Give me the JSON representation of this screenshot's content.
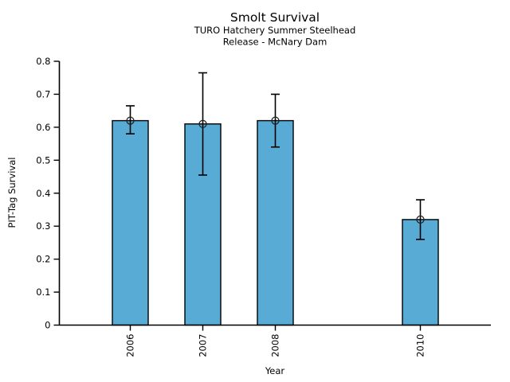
{
  "chart_data": {
    "type": "bar",
    "title": "Smolt Survival",
    "subtitle_line1": "TURO Hatchery Summer Steelhead",
    "subtitle_line2": "Release - McNary Dam",
    "xlabel": "Year",
    "ylabel": "PIT-Tag Survival",
    "categories": [
      "2006",
      "2007",
      "2008",
      "2010"
    ],
    "x_values": [
      2006,
      2007,
      2008,
      2010
    ],
    "values": [
      0.62,
      0.61,
      0.62,
      0.32
    ],
    "error_low": [
      0.58,
      0.455,
      0.54,
      0.26
    ],
    "error_high": [
      0.665,
      0.765,
      0.7,
      0.38
    ],
    "marker": "open-circle",
    "y_tick_labels": [
      "0",
      "0.1",
      "0.2",
      "0.3",
      "0.4",
      "0.5",
      "0.6",
      "0.7",
      "0.8"
    ],
    "y_ticks": [
      0,
      0.1,
      0.2,
      0.3,
      0.4,
      0.5,
      0.6,
      0.7,
      0.8
    ],
    "ylim": [
      0,
      0.8
    ],
    "xlim": [
      2005,
      2011
    ],
    "grid": false,
    "legend": false,
    "bar_color": "#58ABD5",
    "bar_edge_color": "#000000",
    "errorbar_color": "#000000",
    "axis_color": "#000000"
  }
}
